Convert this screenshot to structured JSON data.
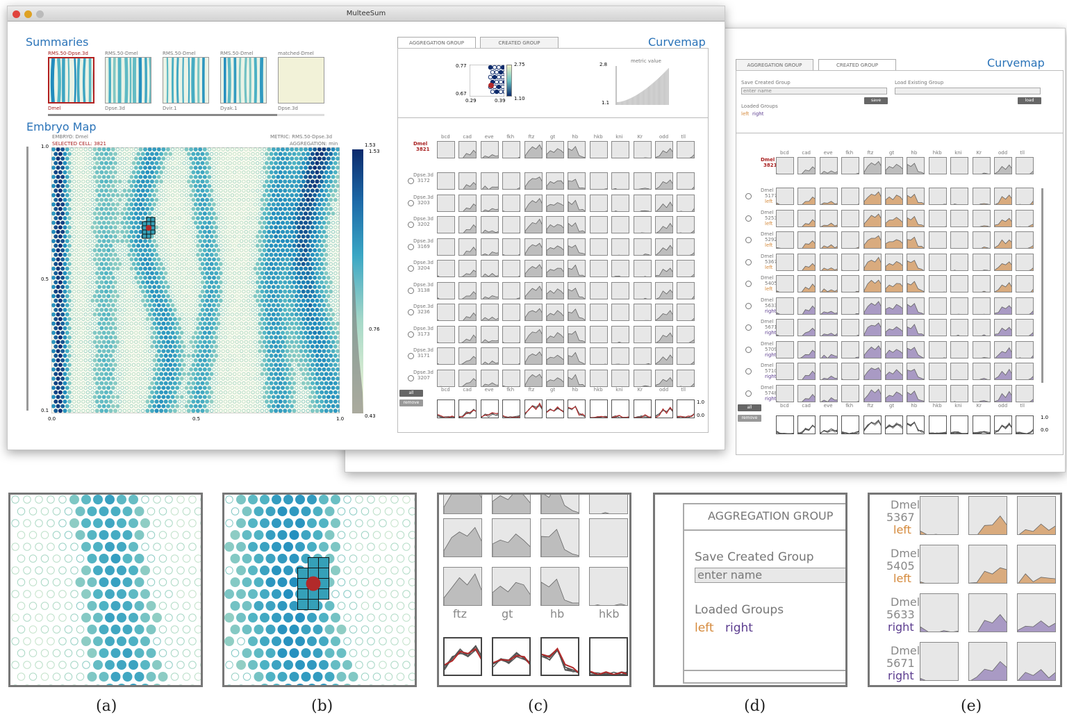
{
  "main_window": {
    "title": "MulteeSum",
    "summaries": {
      "heading": "Summaries",
      "thumbs": [
        {
          "top": "RMS.50-Dpse.3d",
          "bottom": "Dmel",
          "selected": true
        },
        {
          "top": "RMS.50-Dmel",
          "bottom": "Dpse.3d"
        },
        {
          "top": "RMS.50-Dmel",
          "bottom": "Dvir.1"
        },
        {
          "top": "RMS.50-Dmel",
          "bottom": "Dyak.1"
        },
        {
          "top": "matched-Dmel",
          "bottom": "Dpse.3d"
        }
      ]
    },
    "embryo_map": {
      "heading": "Embryo Map",
      "embryo": "EMBRYO: Dmel",
      "selected_cell": "SELECTED CELL: 3821",
      "metric": "METRIC: RMS.50-Dpse.3d",
      "aggregation": "AGGREGATION: min",
      "y_ticks": [
        "1.0",
        "0.5",
        "0.1"
      ],
      "x_ticks": [
        "0.0",
        "0.5",
        "1.0"
      ],
      "scale_max": "1.53",
      "scale_max2": "1.53",
      "scale_mid": "0.76",
      "scale_min": "0.43"
    },
    "curvemap": {
      "heading": "Curvemap",
      "tabs": [
        "AGGREGATION GROUP",
        "CREATED GROUP"
      ],
      "scatter": {
        "y_top": "0.77",
        "y_bot": "0.67",
        "x_left": "0.29",
        "x_right": "0.39",
        "c_top": "2.75",
        "c_bot": "1.10"
      },
      "metric": {
        "label": "metric value",
        "top": "2.8",
        "bottom": "1.1"
      },
      "genes": [
        "bcd",
        "cad",
        "eve",
        "fkh",
        "ftz",
        "gt",
        "hb",
        "hkb",
        "kni",
        "Kr",
        "odd",
        "tll"
      ],
      "ref_row": {
        "name": "Dmel",
        "id": "3821"
      },
      "rows": [
        {
          "name": "Dpse.3d",
          "id": "3172"
        },
        {
          "name": "Dpse.3d",
          "id": "3203"
        },
        {
          "name": "Dpse.3d",
          "id": "3202"
        },
        {
          "name": "Dpse.3d",
          "id": "3169"
        },
        {
          "name": "Dpse.3d",
          "id": "3204"
        },
        {
          "name": "Dpse.3d",
          "id": "3138"
        },
        {
          "name": "Dpse.3d",
          "id": "3236"
        },
        {
          "name": "Dpse.3d",
          "id": "3173"
        },
        {
          "name": "Dpse.3d",
          "id": "3171"
        },
        {
          "name": "Dpse.3d",
          "id": "3207"
        }
      ],
      "btn_all": "all",
      "btn_remove": "remove",
      "agg_top": "1.0",
      "agg_bot": "0.0"
    }
  },
  "second_window": {
    "tabs": [
      "AGGREGATION GROUP",
      "CREATED GROUP"
    ],
    "heading": "Curvemap",
    "save_label": "Save Created Group",
    "name_placeholder": "enter name",
    "save_btn": "save",
    "load_label": "Load Existing Group",
    "load_btn": "load",
    "loaded_label": "Loaded Groups",
    "loaded_left": "left",
    "loaded_right": "right",
    "genes": [
      "bcd",
      "cad",
      "eve",
      "fkh",
      "ftz",
      "gt",
      "hb",
      "hkb",
      "kni",
      "Kr",
      "odd",
      "tll"
    ],
    "ref_row": {
      "name": "Dmel",
      "id": "3821"
    },
    "rows": [
      {
        "name": "Dmel",
        "id": "5177",
        "group": "left"
      },
      {
        "name": "Dmel",
        "id": "5253",
        "group": "left"
      },
      {
        "name": "Dmel",
        "id": "5292",
        "group": "left"
      },
      {
        "name": "Dmel",
        "id": "5367",
        "group": "left"
      },
      {
        "name": "Dmel",
        "id": "5405",
        "group": "left"
      },
      {
        "name": "Dmel",
        "id": "5633",
        "group": "right"
      },
      {
        "name": "Dmel",
        "id": "5671",
        "group": "right"
      },
      {
        "name": "Dmel",
        "id": "5709",
        "group": "right"
      },
      {
        "name": "Dmel",
        "id": "5710",
        "group": "right"
      },
      {
        "name": "Dmel",
        "id": "5748",
        "group": "right"
      }
    ],
    "btn_all": "all",
    "btn_remove": "remove",
    "agg_top": "1.0",
    "agg_bot": "0.0"
  },
  "details": {
    "c_genes": [
      "ftz",
      "gt",
      "hb",
      "hkb"
    ],
    "d": {
      "tab": "AGGREGATION GROUP",
      "save_label": "Save Created Group",
      "placeholder": "enter name",
      "loaded_label": "Loaded Groups",
      "left": "left",
      "right": "right"
    },
    "e_rows": [
      {
        "name": "Dmel",
        "id": "5367",
        "group": "left"
      },
      {
        "name": "Dmel",
        "id": "5405",
        "group": "left"
      },
      {
        "name": "Dmel",
        "id": "5633",
        "group": "right"
      },
      {
        "name": "Dmel",
        "id": "5671",
        "group": "right"
      }
    ]
  },
  "captions": [
    "(a)",
    "(b)",
    "(c)",
    "(d)",
    "(e)"
  ],
  "colors": {
    "accent": "#2a73b8",
    "selected": "#a82020",
    "left": "#d58a3c",
    "right": "#5c3d8f"
  }
}
